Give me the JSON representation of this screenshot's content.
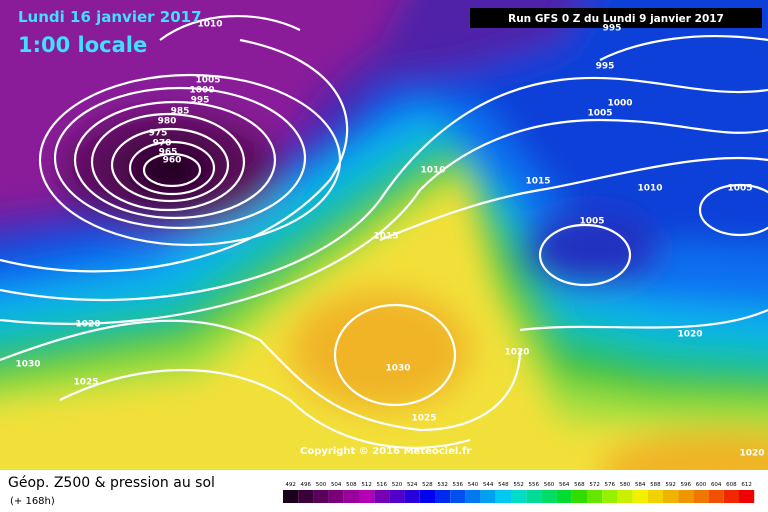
{
  "header": {
    "date": "Lundi 16 janvier 2017",
    "time": "1:00 locale",
    "run": "Run GFS 0 Z du Lundi 9 janvier 2017"
  },
  "copyright": "Copyright © 2016 Meteociel.fr",
  "footer": {
    "title": "Géop. Z500 & pression au sol",
    "subtitle": "(+ 168h)"
  },
  "isobar_labels": [
    1010,
    1005,
    1000,
    995,
    985,
    980,
    975,
    970,
    965,
    960,
    995,
    1000,
    1005,
    995,
    1010,
    1015,
    1010,
    1005,
    1005,
    1015,
    1020,
    1030,
    1025,
    1030,
    1020,
    1020,
    1025,
    1020
  ],
  "legend": {
    "values": [
      492,
      496,
      500,
      504,
      508,
      512,
      516,
      520,
      524,
      528,
      532,
      536,
      540,
      544,
      548,
      552,
      556,
      560,
      564,
      568,
      572,
      576,
      580,
      584,
      588,
      592,
      596,
      600,
      604,
      608,
      612
    ],
    "colors": [
      "#1a001a",
      "#3a003a",
      "#5a005a",
      "#7a007a",
      "#9a009a",
      "#b400b4",
      "#7800b4",
      "#5000c8",
      "#2800dc",
      "#0000f0",
      "#0028f0",
      "#0050f0",
      "#0078f0",
      "#00a0f0",
      "#00c8f0",
      "#00dcc8",
      "#00dc96",
      "#00dc64",
      "#00dc32",
      "#32dc00",
      "#64e600",
      "#96f000",
      "#c8f000",
      "#f0f000",
      "#f0d200",
      "#f0b400",
      "#f09600",
      "#f07800",
      "#f05000",
      "#f02800",
      "#f00000"
    ]
  }
}
